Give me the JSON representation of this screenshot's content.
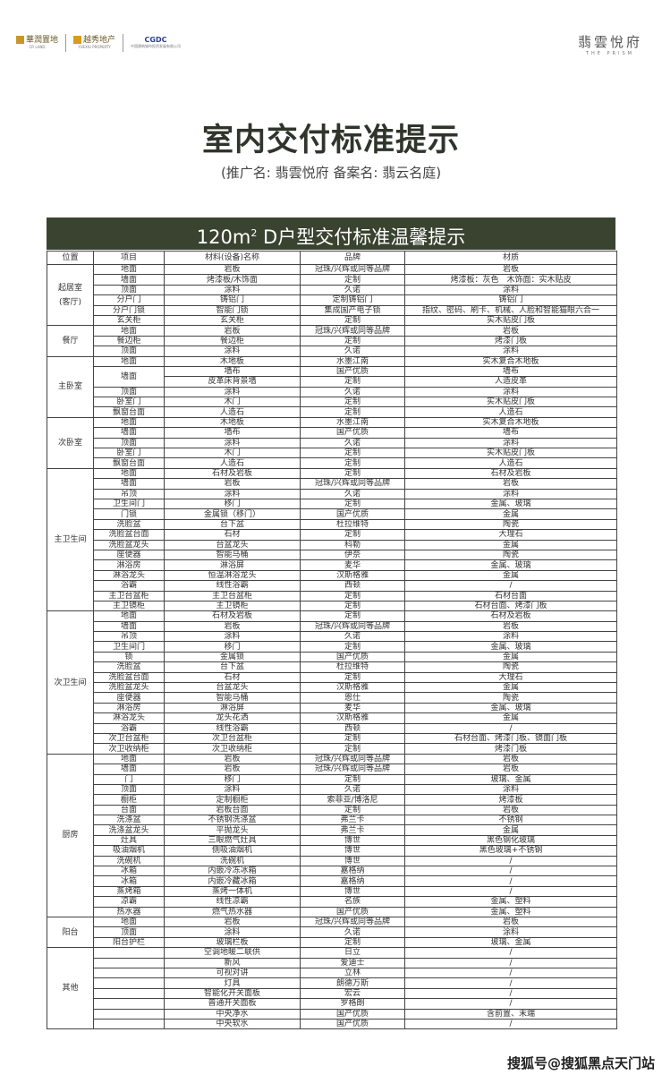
{
  "header": {
    "logo_crland": "華潤置地",
    "logo_crland_en": "CR LAND",
    "logo_yuexiu": "越秀地产",
    "logo_yuexiu_en": "YUEXIU PROPERTY",
    "logo_cgdc": "CGDC",
    "logo_cgdc_sub": "中国建筑城市投资发展有限公司",
    "brand_cn": "翡雲悅府",
    "brand_en": "THE PRISM"
  },
  "title": "室内交付标准提示",
  "subtitle": "(推广名: 翡雲悦府  备案名: 翡云名庭)",
  "banner": {
    "prefix": "120m",
    "sup": "2",
    "text": " D户型交付标准温馨提示"
  },
  "table": {
    "headers": [
      "位置",
      "项目",
      "材料(设备)名称",
      "品牌",
      "材质"
    ],
    "groups": [
      {
        "location": "起居室\n(客厅)",
        "rows": [
          {
            "item": "地面",
            "material": "岩板",
            "brand": "冠珠/兴辉或同等品牌",
            "quality": "岩板"
          },
          {
            "item": "墙面",
            "material": "烤漆板/木饰面",
            "brand": "定制",
            "quality": "烤漆板：灰色　木饰面：实木贴皮"
          },
          {
            "item": "顶面",
            "material": "涂料",
            "brand": "久诺",
            "quality": "涂料"
          },
          {
            "item": "分户门",
            "material": "铸铝门",
            "brand": "定制铸铝门",
            "quality": "铸铝门"
          },
          {
            "item": "分户门锁",
            "material": "智能门锁",
            "brand": "集成国产电子锁",
            "quality": "指纹、密码、刷卡、机械、人脸和智能猫眼六合一"
          },
          {
            "item": "玄关柜",
            "material": "玄关柜",
            "brand": "定制",
            "quality": "实木贴皮门板"
          }
        ]
      },
      {
        "location": "餐厅",
        "rows": [
          {
            "item": "地面",
            "material": "岩板",
            "brand": "冠珠/兴辉或同等品牌",
            "quality": "岩板"
          },
          {
            "item": "餐边柜",
            "material": "餐边柜",
            "brand": "定制",
            "quality": "烤漆门板"
          },
          {
            "item": "顶面",
            "material": "涂料",
            "brand": "久诺",
            "quality": "涂料"
          }
        ]
      },
      {
        "location": "主卧室",
        "rows": [
          {
            "item": "地面",
            "material": "木地板",
            "brand": "水墨江南",
            "quality": "实木复合木地板"
          },
          {
            "item": "墙面",
            "material": "墙布",
            "brand": "国产优质",
            "quality": "墙布"
          },
          {
            "material": "皮革床背景墙",
            "brand": "定制",
            "quality": "人造皮革"
          },
          {
            "item": "顶面",
            "material": "涂料",
            "brand": "久诺",
            "quality": "涂料"
          },
          {
            "item": "卧室门",
            "material": "木门",
            "brand": "定制",
            "quality": "实木贴皮门板"
          },
          {
            "item": "飘窗台面",
            "material": "人造石",
            "brand": "定制",
            "quality": "人造石"
          }
        ]
      },
      {
        "location": "次卧室",
        "rows": [
          {
            "item": "地面",
            "material": "木地板",
            "brand": "水墨江南",
            "quality": "实木复合木地板"
          },
          {
            "item": "墙面",
            "material": "墙布",
            "brand": "国产优质",
            "quality": "墙布"
          },
          {
            "item": "顶面",
            "material": "涂料",
            "brand": "久诺",
            "quality": "涂料"
          },
          {
            "item": "卧室门",
            "material": "木门",
            "brand": "定制",
            "quality": "实木贴皮门板"
          },
          {
            "item": "飘窗台面",
            "material": "人造石",
            "brand": "定制",
            "quality": "人造石"
          }
        ]
      },
      {
        "location": "主卫生间",
        "rows": [
          {
            "item": "地面",
            "material": "石材及岩板",
            "brand": "定制",
            "quality": "石材及岩板"
          },
          {
            "item": "墙面",
            "material": "岩板",
            "brand": "冠珠/兴辉或同等品牌",
            "quality": "岩板"
          },
          {
            "item": "吊顶",
            "material": "涂料",
            "brand": "久诺",
            "quality": "涂料"
          },
          {
            "item": "卫生间门",
            "material": "移门",
            "brand": "定制",
            "quality": "金属、玻璃"
          },
          {
            "item": "门锁",
            "material": "金属锁（移门）",
            "brand": "国产优质",
            "quality": "金属"
          },
          {
            "item": "洗脸盆",
            "material": "台下盆",
            "brand": "杜拉维特",
            "quality": "陶瓷"
          },
          {
            "item": "洗脸盆台面",
            "material": "石材",
            "brand": "定制",
            "quality": "大理石"
          },
          {
            "item": "洗脸盆龙头",
            "material": "台盆龙头",
            "brand": "科勒",
            "quality": "金属"
          },
          {
            "item": "座便器",
            "material": "智能马桶",
            "brand": "伊奈",
            "quality": "陶瓷"
          },
          {
            "item": "淋浴房",
            "material": "淋浴屏",
            "brand": "麦华",
            "quality": "金属、玻璃"
          },
          {
            "item": "淋浴龙头",
            "material": "恒温淋浴龙头",
            "brand": "汉斯格雅",
            "quality": "金属"
          },
          {
            "item": "浴霸",
            "material": "线性浴霸",
            "brand": "西顿",
            "quality": "/"
          },
          {
            "item": "主卫台盆柜",
            "material": "主卫台盆柜",
            "brand": "定制",
            "quality": "石材台面"
          },
          {
            "item": "主卫镜柜",
            "material": "主卫镜柜",
            "brand": "定制",
            "quality": "石材台面、烤漆门板"
          }
        ]
      },
      {
        "location": "次卫生间",
        "rows": [
          {
            "item": "地面",
            "material": "石材及岩板",
            "brand": "定制",
            "quality": "石材及岩板"
          },
          {
            "item": "墙面",
            "material": "岩板",
            "brand": "冠珠/兴辉或同等品牌",
            "quality": "岩板"
          },
          {
            "item": "吊顶",
            "material": "涂料",
            "brand": "久诺",
            "quality": "涂料"
          },
          {
            "item": "卫生间门",
            "material": "移门",
            "brand": "定制",
            "quality": "金属、玻璃"
          },
          {
            "item": "锁",
            "material": "金属锁",
            "brand": "国产优质",
            "quality": "金属"
          },
          {
            "item": "洗脸盆",
            "material": "台下盆",
            "brand": "杜拉维特",
            "quality": "陶瓷"
          },
          {
            "item": "洗脸盆台面",
            "material": "石材",
            "brand": "定制",
            "quality": "大理石"
          },
          {
            "item": "洗脸盆龙头",
            "material": "台盆龙头",
            "brand": "汉斯格雅",
            "quality": "金属"
          },
          {
            "item": "座便器",
            "material": "智能马桶",
            "brand": "恩仕",
            "quality": "陶瓷"
          },
          {
            "item": "淋浴房",
            "material": "淋浴屏",
            "brand": "麦华",
            "quality": "金属、玻璃"
          },
          {
            "item": "淋浴龙头",
            "material": "龙头花洒",
            "brand": "汉斯格雅",
            "quality": "金属"
          },
          {
            "item": "浴霸",
            "material": "线性浴霸",
            "brand": "西顿",
            "quality": "/"
          },
          {
            "item": "次卫台盆柜",
            "material": "次卫台盆柜",
            "brand": "定制",
            "quality": "石材台面、烤漆门板、镜面门板"
          },
          {
            "item": "次卫收纳柜",
            "material": "次卫收纳柜",
            "brand": "定制",
            "quality": "烤漆门板"
          }
        ]
      },
      {
        "location": "厨房",
        "rows": [
          {
            "item": "地面",
            "material": "岩板",
            "brand": "冠珠/兴辉或同等品牌",
            "quality": "岩板"
          },
          {
            "item": "墙面",
            "material": "岩板",
            "brand": "冠珠/兴辉或同等品牌",
            "quality": "岩板"
          },
          {
            "item": "门",
            "material": "移门",
            "brand": "定制",
            "quality": "玻璃、金属"
          },
          {
            "item": "顶面",
            "material": "涂料",
            "brand": "久诺",
            "quality": "涂料"
          },
          {
            "item": "橱柜",
            "material": "定制橱柜",
            "brand": "索菲亚/博洛尼",
            "quality": "烤漆板"
          },
          {
            "item": "台面",
            "material": "岩板台面",
            "brand": "定制",
            "quality": "岩板"
          },
          {
            "item": "洗涤盆",
            "material": "不锈钢洗涤盆",
            "brand": "弗兰卡",
            "quality": "不锈钢"
          },
          {
            "item": "洗涤盆龙头",
            "material": "平抛龙头",
            "brand": "弗兰卡",
            "quality": "金属"
          },
          {
            "item": "灶具",
            "material": "三眼燃气灶具",
            "brand": "博世",
            "quality": "黑色钢化玻璃"
          },
          {
            "item": "吸油烟机",
            "material": "侧吸油烟机",
            "brand": "博世",
            "quality": "黑色玻璃+不锈钢"
          },
          {
            "item": "洗碗机",
            "material": "洗碗机",
            "brand": "博世",
            "quality": "/"
          },
          {
            "item": "冰箱",
            "material": "内嵌冷冻冰箱",
            "brand": "嘉格纳",
            "quality": "/"
          },
          {
            "item": "冰箱",
            "material": "内嵌冷藏冰箱",
            "brand": "嘉格纳",
            "quality": "/"
          },
          {
            "item": "蒸烤箱",
            "material": "蒸烤一体机",
            "brand": "博世",
            "quality": "/"
          },
          {
            "item": "凉霸",
            "material": "线性凉霸",
            "brand": "名族",
            "quality": "金属、塑料"
          },
          {
            "item": "热水器",
            "material": "燃气热水器",
            "brand": "国产优质",
            "quality": "金属、塑料"
          }
        ]
      },
      {
        "location": "阳台",
        "rows": [
          {
            "item": "地面",
            "material": "岩板",
            "brand": "冠珠/兴辉或同等品牌",
            "quality": "岩板"
          },
          {
            "item": "顶面",
            "material": "涂料",
            "brand": "久诺",
            "quality": "涂料"
          },
          {
            "item": "阳台护栏",
            "material": "玻璃栏板",
            "brand": "定制",
            "quality": "玻璃、金属"
          }
        ]
      },
      {
        "location": "其他",
        "rows": [
          {
            "item": "",
            "material": "空调地暖二联供",
            "brand": "日立",
            "quality": "/"
          },
          {
            "item": "",
            "material": "新风",
            "brand": "爱迪士",
            "quality": "/"
          },
          {
            "item": "",
            "material": "可视对讲",
            "brand": "立林",
            "quality": "/"
          },
          {
            "item": "",
            "material": "灯具",
            "brand": "朗德万斯",
            "quality": "/"
          },
          {
            "item": "",
            "material": "智能化开关面板",
            "brand": "宏云",
            "quality": "/"
          },
          {
            "item": "",
            "material": "普通开关面板",
            "brand": "罗格朗",
            "quality": "/"
          },
          {
            "item": "",
            "material": "中央净水",
            "brand": "国产优质",
            "quality": "含前置、末端"
          },
          {
            "item": "",
            "material": "中央软水",
            "brand": "国产优质",
            "quality": "/"
          }
        ]
      }
    ]
  },
  "watermark": "搜狐号@搜狐黑点天门站",
  "colors": {
    "banner": "#3a4330",
    "title": "#2f352b",
    "logo_gold": "#c9962e",
    "cgdc_blue": "#2a3f8c"
  }
}
